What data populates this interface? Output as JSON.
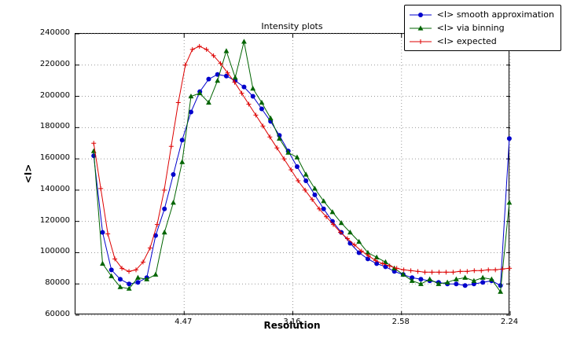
{
  "chart_data": {
    "type": "line",
    "title": "Intensity plots",
    "xlabel": "Resolution",
    "ylabel": "<I>",
    "grid": true,
    "legend_position": "upper right",
    "x_axis": {
      "range": [
        0.0,
        0.2
      ],
      "ticks": [
        {
          "value": 0.05,
          "label": "4.47"
        },
        {
          "value": 0.1,
          "label": "3.16"
        },
        {
          "value": 0.15,
          "label": "2.58"
        },
        {
          "value": 0.2,
          "label": "2.24"
        }
      ]
    },
    "y_axis": {
      "range": [
        60000,
        240000
      ],
      "ticks": [
        60000,
        80000,
        100000,
        120000,
        140000,
        160000,
        180000,
        200000,
        220000,
        240000
      ]
    },
    "series": [
      {
        "name": "<I> smooth approximation",
        "color": "#0000cc",
        "marker": "circle",
        "x_start": 0.0084,
        "x_step": 0.004068,
        "y": [
          162000,
          113000,
          89000,
          83000,
          80000,
          81000,
          84000,
          111000,
          128000,
          150000,
          172000,
          190000,
          203000,
          211000,
          214000,
          213000,
          210000,
          206000,
          200000,
          192000,
          184000,
          175000,
          165000,
          155000,
          146000,
          137000,
          128000,
          120000,
          113000,
          106000,
          100000,
          96000,
          93000,
          91000,
          88000,
          86000,
          84000,
          83000,
          82000,
          81000,
          80000,
          80000,
          79000,
          80000,
          81000,
          82000,
          79000,
          173000
        ]
      },
      {
        "name": "<I> via binning",
        "color": "#006400",
        "marker": "triangle",
        "x_start": 0.0084,
        "x_step": 0.004068,
        "y": [
          165000,
          93000,
          85000,
          78000,
          77000,
          84000,
          83000,
          86000,
          113000,
          132000,
          158000,
          200000,
          202000,
          196000,
          210000,
          229000,
          212000,
          235000,
          205000,
          196000,
          186000,
          173000,
          164000,
          161000,
          150000,
          141000,
          133000,
          126000,
          119000,
          113000,
          107000,
          100000,
          97000,
          94000,
          90000,
          86000,
          82000,
          80000,
          83000,
          80000,
          81000,
          83000,
          84000,
          82000,
          84000,
          83000,
          75000,
          132000
        ]
      },
      {
        "name": "<I> expected",
        "color": "#dd0000",
        "marker": "plus",
        "x_start": 0.0084,
        "x_step": 0.003242,
        "y": [
          170000,
          141000,
          112000,
          96000,
          90000,
          88000,
          89000,
          94000,
          103000,
          118000,
          140000,
          168000,
          196000,
          220000,
          230000,
          232000,
          230000,
          226000,
          221000,
          215000,
          209000,
          202000,
          195000,
          188000,
          181000,
          174000,
          167000,
          160000,
          153000,
          146000,
          140000,
          134000,
          128000,
          123000,
          118000,
          113000,
          109000,
          105000,
          101000,
          98000,
          95000,
          93000,
          91500,
          90000,
          89000,
          88500,
          88000,
          87500,
          87500,
          87500,
          87500,
          87500,
          88000,
          88000,
          88500,
          88500,
          89000,
          89000,
          89500,
          90000
        ]
      }
    ]
  }
}
